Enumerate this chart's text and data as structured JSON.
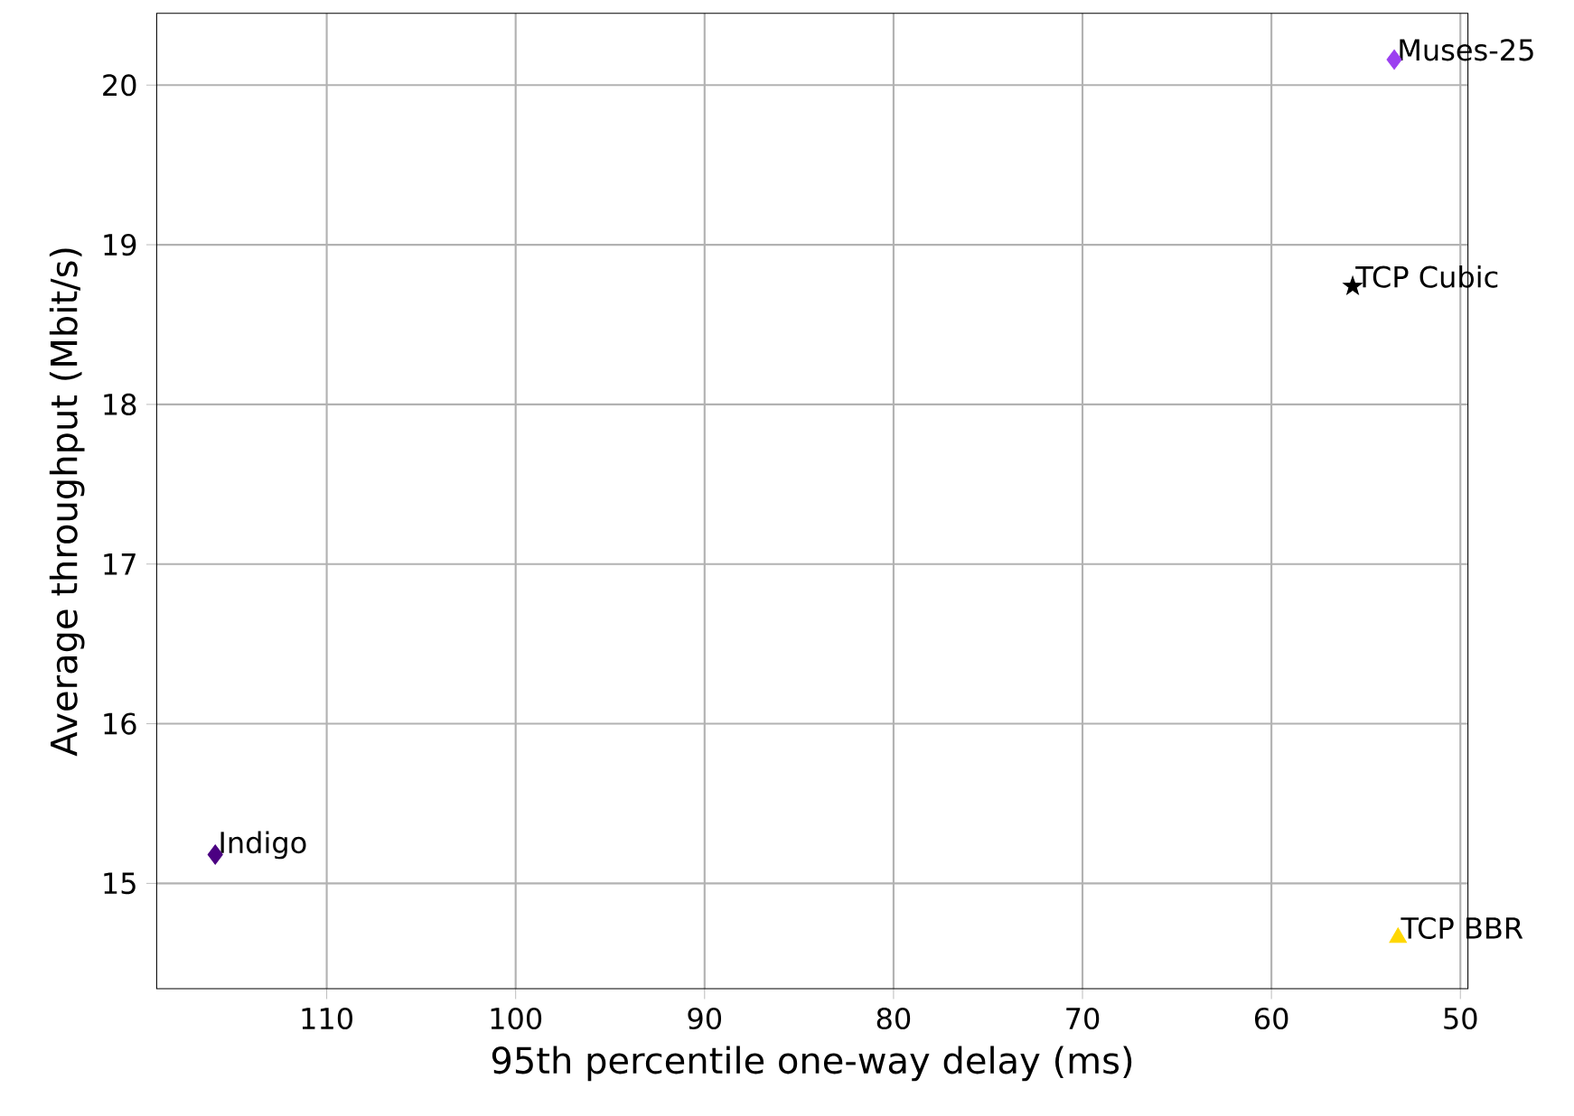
{
  "chart_data": {
    "type": "scatter",
    "xlabel": "95th percentile one-way delay (ms)",
    "ylabel": "Average throughput (Mbit/s)",
    "xlim": [
      119,
      49.6
    ],
    "ylim": [
      14.34,
      20.45
    ],
    "xticks": [
      110,
      100,
      90,
      80,
      70,
      60,
      50
    ],
    "yticks": [
      15,
      16,
      17,
      18,
      19,
      20
    ],
    "grid": true,
    "series": [
      {
        "name": "Muses-25",
        "color": "#9b3ff0",
        "marker": "diamond",
        "x": [
          53.5
        ],
        "values": [
          20.16
        ]
      },
      {
        "name": "TCP Cubic",
        "color": "#000000",
        "marker": "star",
        "x": [
          55.7
        ],
        "values": [
          18.74
        ]
      },
      {
        "name": "Indigo",
        "color": "#4b0082",
        "marker": "diamond",
        "x": [
          115.9
        ],
        "values": [
          15.18
        ]
      },
      {
        "name": "TCP BBR",
        "color": "#ffd700",
        "marker": "triangle",
        "x": [
          53.3
        ],
        "values": [
          14.66
        ]
      }
    ]
  }
}
